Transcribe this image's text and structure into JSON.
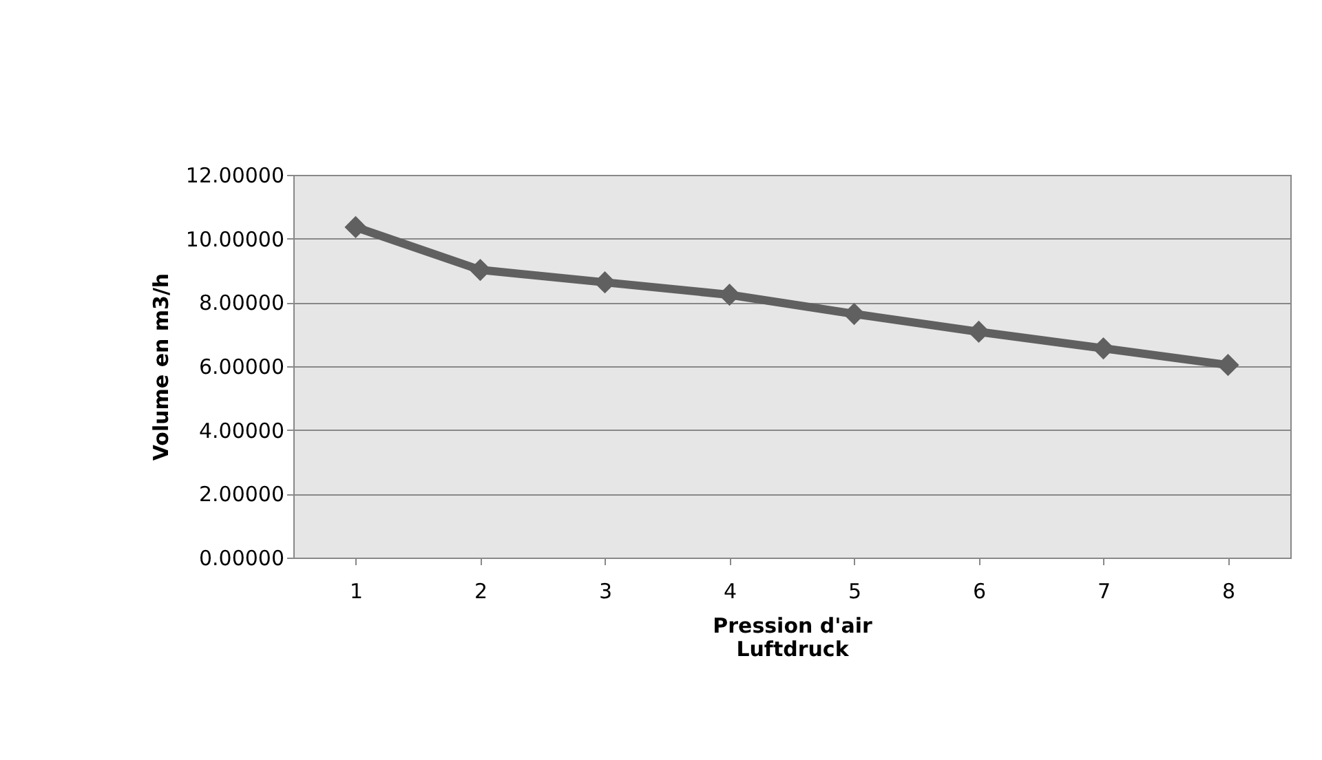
{
  "chart_data": {
    "type": "line",
    "xlabel": "Pression d'air\nLuftdruck",
    "ylabel": "Volume en m3/h",
    "categories": [
      "1",
      "2",
      "3",
      "4",
      "5",
      "6",
      "7",
      "8"
    ],
    "series": [
      {
        "color": "#606060",
        "values": [
          10.36,
          9.02,
          8.63,
          8.24,
          7.64,
          7.08,
          6.56,
          6.04
        ]
      }
    ],
    "ylim": [
      0,
      12
    ],
    "yticks": [
      {
        "value": 0,
        "label": "0.00000"
      },
      {
        "value": 2,
        "label": "2.00000"
      },
      {
        "value": 4,
        "label": "4.00000"
      },
      {
        "value": 6,
        "label": "6.00000"
      },
      {
        "value": 8,
        "label": "8.00000"
      },
      {
        "value": 10,
        "label": "10.00000"
      },
      {
        "value": 12,
        "label": "12.00000"
      }
    ],
    "grid": "y",
    "marker": "diamond",
    "line_style": "solid",
    "legend": false
  }
}
